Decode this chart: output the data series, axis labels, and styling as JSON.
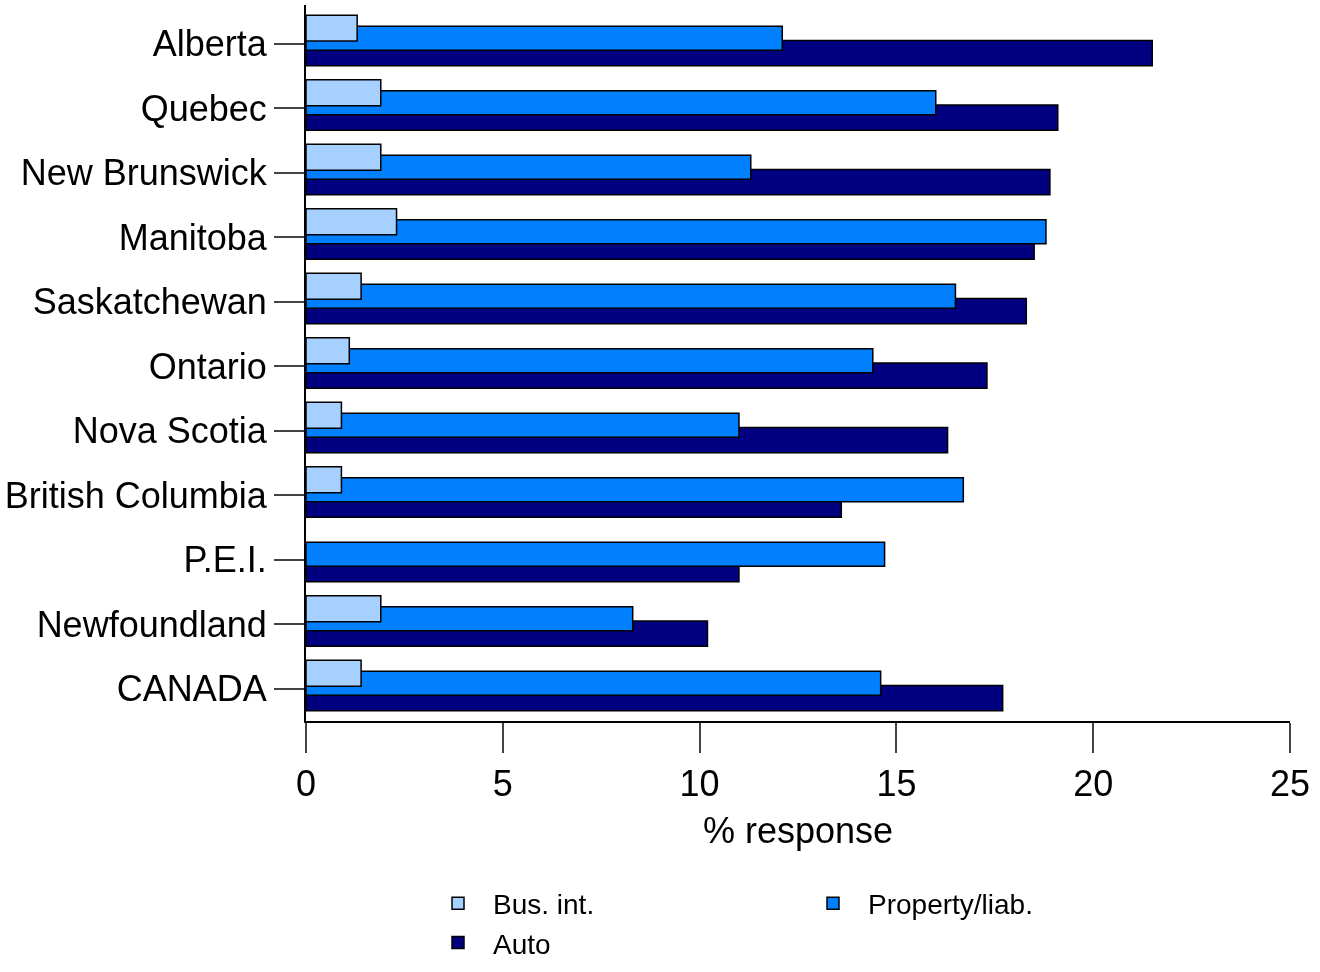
{
  "chart_data": {
    "type": "bar",
    "orientation": "horizontal",
    "xlabel": "% response",
    "categories": [
      "Alberta",
      "Quebec",
      "New Brunswick",
      "Manitoba",
      "Saskatchewan",
      "Ontario",
      "Nova Scotia",
      "British Columbia",
      "P.E.I.",
      "Newfoundland",
      "CANADA"
    ],
    "series": [
      {
        "name": "Bus. int.",
        "color": "#a6d0ff",
        "values": [
          1.3,
          1.9,
          1.9,
          2.3,
          1.4,
          1.1,
          0.9,
          0.9,
          null,
          1.9,
          1.4
        ]
      },
      {
        "name": "Property/liab.",
        "color": "#0080ff",
        "values": [
          12.1,
          16.0,
          11.3,
          18.8,
          16.5,
          14.4,
          11.0,
          16.7,
          14.7,
          8.3,
          14.6
        ]
      },
      {
        "name": "Auto",
        "color": "#000080",
        "values": [
          21.5,
          19.1,
          18.9,
          18.5,
          18.3,
          17.3,
          16.3,
          13.6,
          11.0,
          10.2,
          17.7
        ]
      }
    ],
    "xlim": [
      0,
      25
    ],
    "xticks": [
      0,
      5,
      10,
      15,
      20,
      25
    ],
    "legend": "bottom"
  }
}
